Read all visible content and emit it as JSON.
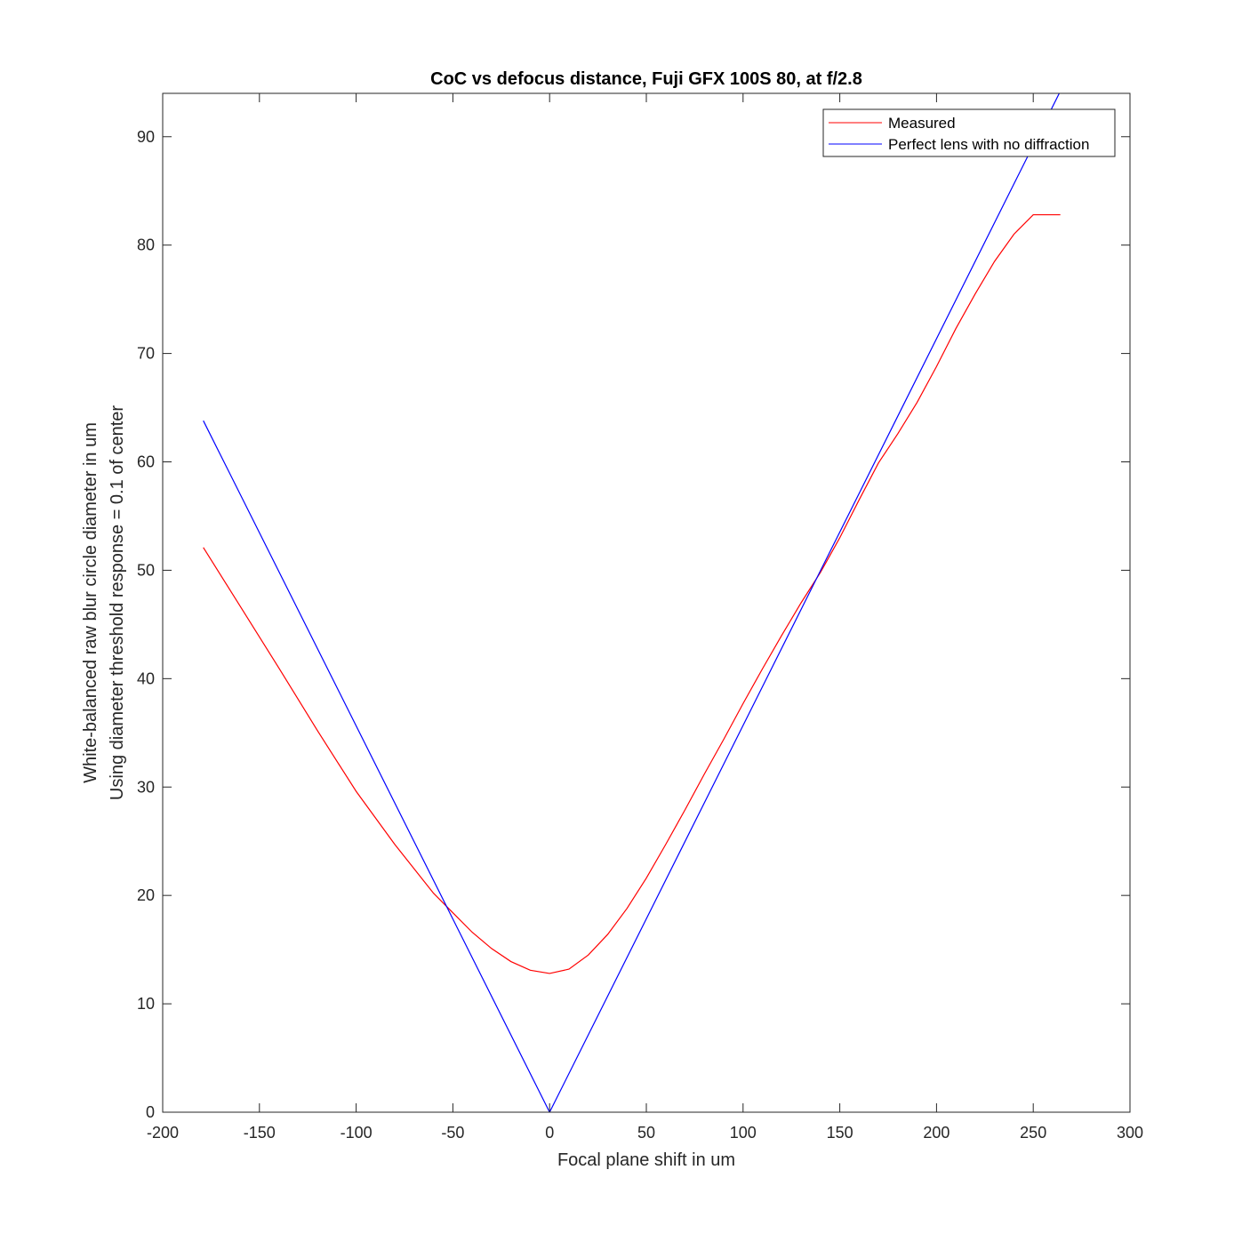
{
  "chart_data": {
    "type": "line",
    "title": "CoC vs defocus distance, Fuji GFX 100S 80, at f/2.8",
    "xlabel": "Focal plane shift in um",
    "ylabel": [
      "White-balanced raw blur circle diameter in um",
      "Using diameter threshold response = 0.1 of center"
    ],
    "xlim": [
      -200,
      300
    ],
    "ylim": [
      0,
      94
    ],
    "xticks": [
      -200,
      -150,
      -100,
      -50,
      0,
      50,
      100,
      150,
      200,
      250,
      300
    ],
    "yticks": [
      0,
      10,
      20,
      30,
      40,
      50,
      60,
      70,
      80,
      90
    ],
    "grid": false,
    "legend_position": "top-right",
    "series": [
      {
        "name": "Measured",
        "color": "#ff0000",
        "x": [
          -179,
          -160,
          -140,
          -120,
          -100,
          -80,
          -60,
          -50,
          -40,
          -30,
          -20,
          -10,
          0,
          10,
          20,
          30,
          40,
          50,
          60,
          70,
          80,
          90,
          100,
          110,
          120,
          130,
          140,
          150,
          160,
          170,
          180,
          190,
          200,
          210,
          220,
          230,
          240,
          250,
          264
        ],
        "y": [
          52.1,
          46.7,
          41.0,
          35.2,
          29.6,
          24.7,
          20.2,
          18.4,
          16.6,
          15.1,
          13.9,
          13.1,
          12.8,
          13.2,
          14.5,
          16.4,
          18.8,
          21.6,
          24.7,
          27.9,
          31.2,
          34.4,
          37.7,
          40.9,
          44.0,
          47.0,
          49.8,
          53.0,
          56.5,
          59.9,
          62.6,
          65.5,
          68.8,
          72.3,
          75.5,
          78.5,
          81.0,
          82.8,
          82.8
        ]
      },
      {
        "name": "Perfect lens with no diffraction",
        "color": "#0000ff",
        "x": [
          -179,
          0,
          264
        ],
        "y": [
          63.8,
          0,
          94.2
        ]
      }
    ]
  }
}
